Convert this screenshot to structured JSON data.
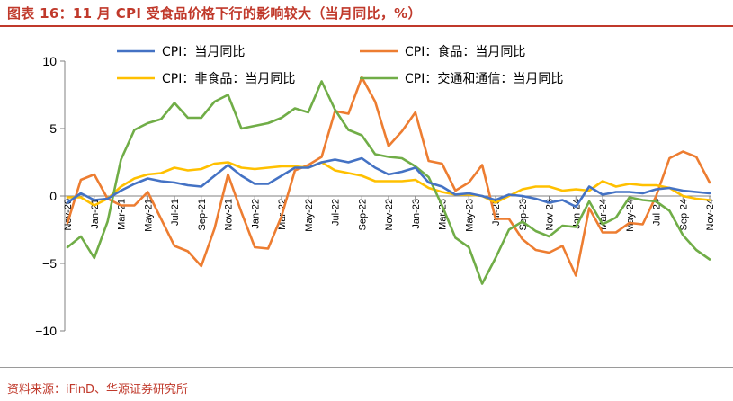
{
  "header": {
    "title": "图表 16：11 月 CPI 受食品价格下行的影响较大（当月同比，%）"
  },
  "footer": {
    "source": "资料来源：iFinD、华源证券研究所"
  },
  "chart_data": {
    "type": "line",
    "ylim": [
      -10,
      10
    ],
    "yticks": [
      -10,
      -5,
      0,
      5,
      10
    ],
    "grid": false,
    "legend": "top",
    "x": [
      "Nov-20",
      "Dec-20",
      "Jan-21",
      "Feb-21",
      "Mar-21",
      "Apr-21",
      "May-21",
      "Jun-21",
      "Jul-21",
      "Aug-21",
      "Sep-21",
      "Oct-21",
      "Nov-21",
      "Dec-21",
      "Jan-22",
      "Feb-22",
      "Mar-22",
      "Apr-22",
      "May-22",
      "Jun-22",
      "Jul-22",
      "Aug-22",
      "Sep-22",
      "Oct-22",
      "Nov-22",
      "Dec-22",
      "Jan-23",
      "Feb-23",
      "Mar-23",
      "Apr-23",
      "May-23",
      "Jun-23",
      "Jul-23",
      "Aug-23",
      "Sep-23",
      "Oct-23",
      "Nov-23",
      "Dec-23",
      "Jan-24",
      "Feb-24",
      "Mar-24",
      "Apr-24",
      "May-24",
      "Jun-24",
      "Jul-24",
      "Aug-24",
      "Sep-24",
      "Oct-24",
      "Nov-24"
    ],
    "xticks": [
      "Nov-20",
      "Jan-21",
      "Mar-21",
      "May-21",
      "Jul-21",
      "Sep-21",
      "Nov-21",
      "Jan-22",
      "Mar-22",
      "May-22",
      "Jul-22",
      "Sep-22",
      "Nov-22",
      "Jan-23",
      "Mar-23",
      "May-23",
      "Jul-23",
      "Sep-23",
      "Nov-23",
      "Jan-24",
      "Mar-24",
      "May-24",
      "Jul-24",
      "Sep-24",
      "Nov-24"
    ],
    "series": [
      {
        "name": "CPI：当月同比",
        "color": "#4472c4",
        "values": [
          -0.5,
          0.2,
          -0.3,
          -0.2,
          0.4,
          0.9,
          1.3,
          1.1,
          1.0,
          0.8,
          0.7,
          1.5,
          2.3,
          1.5,
          0.9,
          0.9,
          1.5,
          2.1,
          2.1,
          2.5,
          2.7,
          2.5,
          2.8,
          2.1,
          1.6,
          1.8,
          2.1,
          1.0,
          0.7,
          0.1,
          0.2,
          0.0,
          -0.3,
          0.1,
          0.0,
          -0.2,
          -0.5,
          -0.3,
          -0.8,
          0.7,
          0.1,
          0.3,
          0.3,
          0.2,
          0.5,
          0.6,
          0.4,
          0.3,
          0.2
        ]
      },
      {
        "name": "CPI：食品：当月同比",
        "color": "#ed7d31",
        "values": [
          -2.0,
          1.2,
          1.6,
          -0.2,
          -0.7,
          -0.7,
          0.3,
          -1.7,
          -3.7,
          -4.1,
          -5.2,
          -2.4,
          1.6,
          -1.2,
          -3.8,
          -3.9,
          -1.5,
          1.9,
          2.3,
          2.9,
          6.3,
          6.1,
          8.8,
          7.0,
          3.7,
          4.8,
          6.2,
          2.6,
          2.4,
          0.4,
          1.0,
          2.3,
          -1.7,
          -1.7,
          -3.2,
          -4.0,
          -4.2,
          -3.7,
          -5.9,
          -0.9,
          -2.7,
          -2.7,
          -2.0,
          -2.1,
          0.0,
          2.8,
          3.3,
          2.9,
          1.0
        ]
      },
      {
        "name": "CPI：非食品：当月同比",
        "color": "#ffc000",
        "values": [
          -0.1,
          -0.1,
          -0.7,
          -0.2,
          0.7,
          1.3,
          1.6,
          1.7,
          2.1,
          1.9,
          2.0,
          2.4,
          2.5,
          2.1,
          2.0,
          2.1,
          2.2,
          2.2,
          2.1,
          2.5,
          1.9,
          1.7,
          1.5,
          1.1,
          1.1,
          1.1,
          1.2,
          0.6,
          0.3,
          0.1,
          0.1,
          0.0,
          -0.5,
          0.0,
          0.5,
          0.7,
          0.7,
          0.4,
          0.5,
          0.4,
          1.1,
          0.7,
          0.9,
          0.8,
          0.8,
          0.6,
          0.0,
          -0.2,
          -0.3
        ]
      },
      {
        "name": "CPI：交通和通信：当月同比",
        "color": "#70ad47",
        "values": [
          -3.8,
          -3.0,
          -4.6,
          -1.9,
          2.7,
          4.9,
          5.4,
          5.7,
          6.9,
          5.8,
          5.8,
          7.0,
          7.5,
          5.0,
          5.2,
          5.4,
          5.8,
          6.5,
          6.2,
          8.5,
          6.4,
          4.9,
          4.5,
          3.1,
          2.9,
          2.8,
          2.2,
          1.4,
          -0.7,
          -3.1,
          -3.8,
          -6.5,
          -4.6,
          -2.5,
          -1.9,
          -2.6,
          -3.0,
          -2.2,
          -2.3,
          -0.4,
          -2.1,
          -1.6,
          -0.1,
          -0.3,
          -0.4,
          -1.1,
          -2.9,
          -4.0,
          -4.7
        ]
      }
    ]
  }
}
